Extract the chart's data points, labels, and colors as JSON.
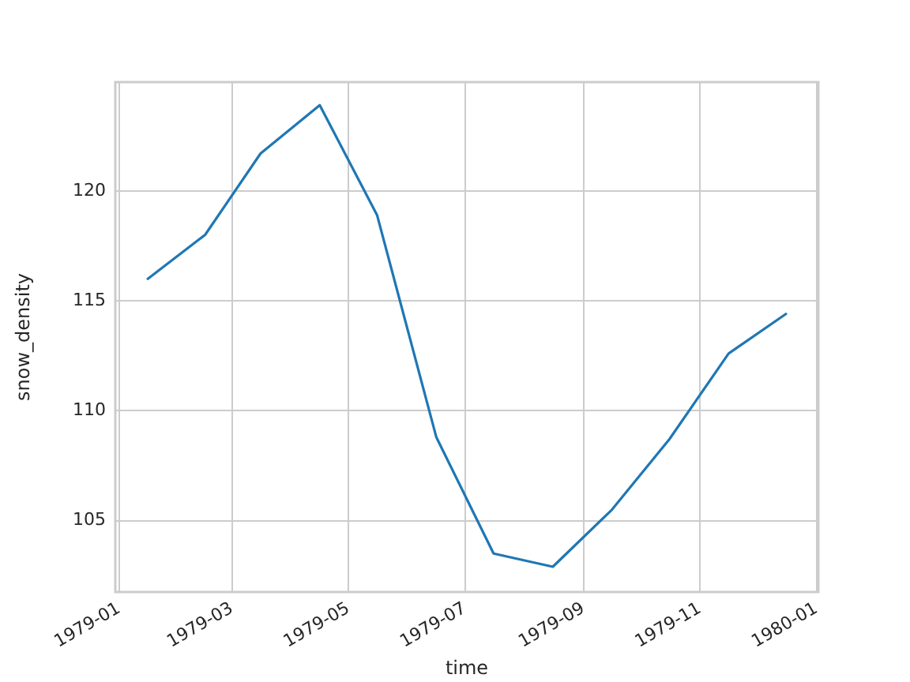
{
  "chart_data": {
    "type": "line",
    "xlabel": "time",
    "ylabel": "snow_density",
    "x": [
      "1979-01-16",
      "1979-02-15",
      "1979-03-16",
      "1979-04-16",
      "1979-05-16",
      "1979-06-16",
      "1979-07-16",
      "1979-08-16",
      "1979-09-16",
      "1979-10-16",
      "1979-11-16",
      "1979-12-16"
    ],
    "values": [
      116.0,
      118.0,
      121.7,
      123.9,
      118.9,
      108.8,
      103.5,
      102.9,
      105.5,
      108.7,
      112.6,
      114.4
    ],
    "color": "#1f77b4",
    "xlim": [
      "1978-12-30",
      "1980-01-02"
    ],
    "xticks": [
      "1979-01",
      "1979-03",
      "1979-05",
      "1979-07",
      "1979-09",
      "1979-11",
      "1980-01"
    ],
    "ylim": [
      101.75,
      124.95
    ],
    "yticks": [
      105,
      110,
      115,
      120
    ],
    "grid": true
  }
}
